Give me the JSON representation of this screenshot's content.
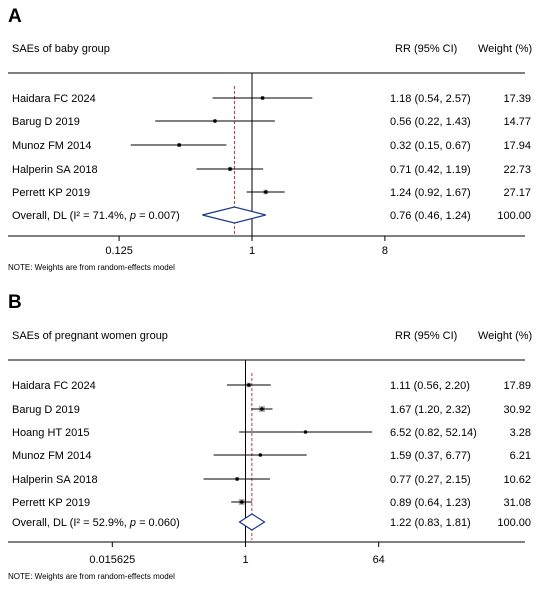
{
  "chart_data": [
    {
      "type": "forest",
      "panel_label": "A",
      "title": "SAEs of baby group",
      "column_headers": {
        "effect": "RR (95% CI)",
        "weight": "Weight (%)"
      },
      "scale": "log2",
      "xlim": [
        0.0625,
        16
      ],
      "x_ticks": [
        0.125,
        1,
        8
      ],
      "x_tick_labels": [
        "0.125",
        "1",
        "8"
      ],
      "reference_line": 1,
      "pooled_line": 0.76,
      "studies": [
        {
          "label": "Haidara FC 2024",
          "rr": 1.18,
          "lo": 0.54,
          "hi": 2.57,
          "ci_text": "1.18 (0.54, 2.57)",
          "weight": 17.39,
          "weight_text": "17.39"
        },
        {
          "label": "Barug D 2019",
          "rr": 0.56,
          "lo": 0.22,
          "hi": 1.43,
          "ci_text": "0.56 (0.22, 1.43)",
          "weight": 14.77,
          "weight_text": "14.77"
        },
        {
          "label": "Munoz FM 2014",
          "rr": 0.32,
          "lo": 0.15,
          "hi": 0.67,
          "ci_text": "0.32 (0.15, 0.67)",
          "weight": 17.94,
          "weight_text": "17.94"
        },
        {
          "label": "Halperin SA 2018",
          "rr": 0.71,
          "lo": 0.42,
          "hi": 1.19,
          "ci_text": "0.71 (0.42, 1.19)",
          "weight": 22.73,
          "weight_text": "22.73"
        },
        {
          "label": "Perrett KP 2019",
          "rr": 1.24,
          "lo": 0.92,
          "hi": 1.67,
          "ci_text": "1.24 (0.92, 1.67)",
          "weight": 27.17,
          "weight_text": "27.17"
        }
      ],
      "overall": {
        "label_prefix": "Overall, DL (I² = 71.4%, ",
        "p_symbol": "p",
        "label_suffix": " = 0.007)",
        "rr": 0.76,
        "lo": 0.46,
        "hi": 1.24,
        "ci_text": "0.76 (0.46, 1.24)",
        "weight_text": "100.00"
      },
      "note": "NOTE: Weights are from random-effects model"
    },
    {
      "type": "forest",
      "panel_label": "B",
      "title": "SAEs of pregnant women group",
      "column_headers": {
        "effect": "RR (95% CI)",
        "weight": "Weight (%)"
      },
      "scale": "log2",
      "xlim": [
        0.0078125,
        128
      ],
      "x_ticks": [
        0.015625,
        1,
        64
      ],
      "x_tick_labels": [
        "0.015625",
        "1",
        "64"
      ],
      "reference_line": 1,
      "pooled_line": 1.22,
      "studies": [
        {
          "label": "Haidara FC 2024",
          "rr": 1.11,
          "lo": 0.56,
          "hi": 2.2,
          "ci_text": "1.11 (0.56, 2.20)",
          "weight": 17.89,
          "weight_text": "17.89"
        },
        {
          "label": "Barug D 2019",
          "rr": 1.67,
          "lo": 1.2,
          "hi": 2.32,
          "ci_text": "1.67 (1.20, 2.32)",
          "weight": 30.92,
          "weight_text": "30.92"
        },
        {
          "label": "Hoang HT 2015",
          "rr": 6.52,
          "lo": 0.82,
          "hi": 52.14,
          "ci_text": "6.52 (0.82, 52.14)",
          "weight": 3.28,
          "weight_text": "3.28"
        },
        {
          "label": "Munoz FM 2014",
          "rr": 1.59,
          "lo": 0.37,
          "hi": 6.77,
          "ci_text": "1.59 (0.37, 6.77)",
          "weight": 6.21,
          "weight_text": "6.21"
        },
        {
          "label": "Halperin SA 2018",
          "rr": 0.77,
          "lo": 0.27,
          "hi": 2.15,
          "ci_text": "0.77 (0.27, 2.15)",
          "weight": 10.62,
          "weight_text": "10.62"
        },
        {
          "label": "Perrett KP 2019",
          "rr": 0.89,
          "lo": 0.64,
          "hi": 1.23,
          "ci_text": "0.89 (0.64, 1.23)",
          "weight": 31.08,
          "weight_text": "31.08"
        }
      ],
      "overall": {
        "label_prefix": "Overall, DL (I² = 52.9%, ",
        "p_symbol": "p",
        "label_suffix": " = 0.060)",
        "rr": 1.22,
        "lo": 0.83,
        "hi": 1.81,
        "ci_text": "1.22 (0.83, 1.81)",
        "weight_text": "100.00"
      },
      "note": "NOTE: Weights are from random-effects model"
    }
  ],
  "colors": {
    "diamond": "#1a3a8a",
    "pooled_line": "#cc3333",
    "weight_box": "#b5b5b5",
    "axis": "#000000"
  }
}
